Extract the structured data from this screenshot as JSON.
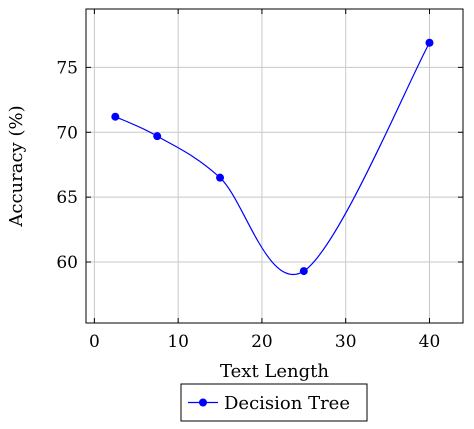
{
  "chart_data": {
    "type": "line",
    "title": "",
    "xlabel": "Text Length",
    "ylabel": "Accuracy (%)",
    "xlim": [
      -1,
      44
    ],
    "ylim": [
      55.3,
      79.5
    ],
    "xticks": [
      0,
      10,
      20,
      30,
      40
    ],
    "yticks": [
      60,
      65,
      70,
      75
    ],
    "grid": true,
    "smooth": true,
    "legend_position": "bottom-outside",
    "series": [
      {
        "name": "Decision Tree",
        "color": "#0000ff",
        "marker": "circle",
        "x": [
          2.5,
          7.5,
          15,
          25,
          40
        ],
        "y": [
          71.2,
          69.7,
          66.5,
          59.3,
          76.9
        ]
      }
    ]
  }
}
